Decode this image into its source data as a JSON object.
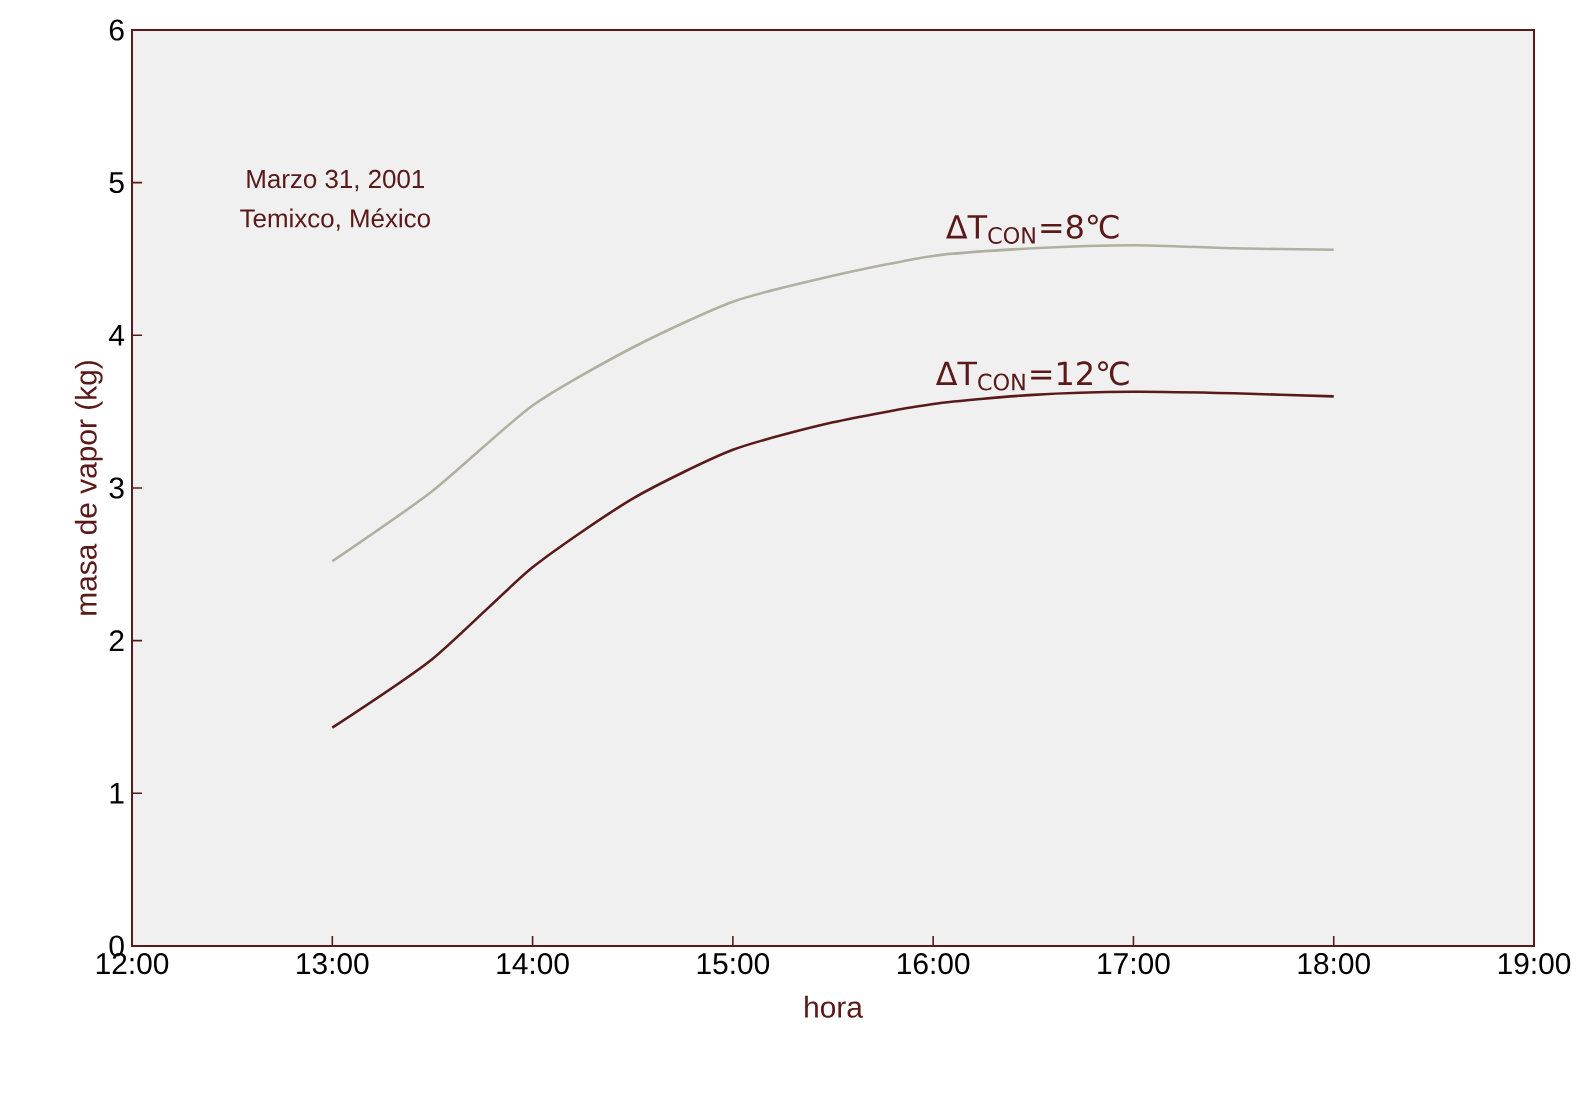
{
  "chart_data": {
    "type": "line",
    "xlabel": "hora",
    "ylabel": "masa de vapor (kg)",
    "annotations": [
      "Marzo 31, 2001",
      "Temixco, México"
    ],
    "x": [
      13,
      13.5,
      14,
      14.5,
      15,
      15.5,
      16,
      16.5,
      17,
      17.5,
      18
    ],
    "series": [
      {
        "name": "ΔT$_{CON}$=8℃",
        "color": "#b0b0a0",
        "values": [
          2.52,
          2.98,
          3.54,
          3.92,
          4.22,
          4.39,
          4.52,
          4.57,
          4.59,
          4.57,
          4.56
        ]
      },
      {
        "name": "ΔT$_{CON}$=12℃",
        "color": "#5a1a1a",
        "values": [
          1.43,
          1.88,
          2.48,
          2.93,
          3.25,
          3.43,
          3.55,
          3.61,
          3.63,
          3.62,
          3.6
        ]
      }
    ],
    "xlim": [
      12,
      19
    ],
    "ylim": [
      0,
      6
    ],
    "xticks": [
      {
        "value": 12,
        "label": "12:00"
      },
      {
        "value": 13,
        "label": "13:00"
      },
      {
        "value": 14,
        "label": "14:00"
      },
      {
        "value": 15,
        "label": "15:00"
      },
      {
        "value": 16,
        "label": "16:00"
      },
      {
        "value": 17,
        "label": "17:00"
      },
      {
        "value": 18,
        "label": "18:00"
      },
      {
        "value": 19,
        "label": "19:00"
      }
    ],
    "yticks": [
      0,
      1,
      2,
      3,
      4,
      5,
      6
    ],
    "marker": "none",
    "line_style": "solid"
  }
}
